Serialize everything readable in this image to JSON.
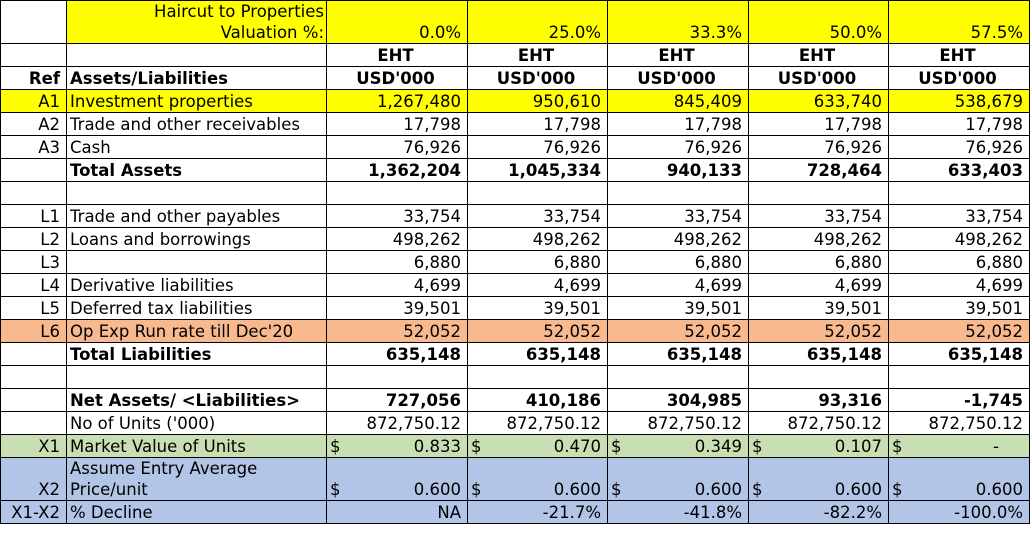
{
  "header": {
    "haircut_label": [
      "Haircut to Properties",
      "Valuation %:"
    ],
    "haircuts": [
      "0.0%",
      "25.0%",
      "33.3%",
      "50.0%",
      "57.5%"
    ],
    "entity": "EHT",
    "unit": "USD'000",
    "ref_label": "Ref",
    "desc_label": "Assets/Liabilities"
  },
  "rows": {
    "a1": {
      "ref": "A1",
      "desc": "Investment properties",
      "values": [
        "1,267,480",
        "950,610",
        "845,409",
        "633,740",
        "538,679"
      ]
    },
    "a2": {
      "ref": "A2",
      "desc": "Trade and other receivables",
      "values": [
        "17,798",
        "17,798",
        "17,798",
        "17,798",
        "17,798"
      ]
    },
    "a3": {
      "ref": "A3",
      "desc": "Cash",
      "values": [
        "76,926",
        "76,926",
        "76,926",
        "76,926",
        "76,926"
      ]
    },
    "total_assets": {
      "desc": "Total Assets",
      "values": [
        "1,362,204",
        "1,045,334",
        "940,133",
        "728,464",
        "633,403"
      ]
    },
    "l1": {
      "ref": "L1",
      "desc": "Trade and other payables",
      "values": [
        "33,754",
        "33,754",
        "33,754",
        "33,754",
        "33,754"
      ]
    },
    "l2": {
      "ref": "L2",
      "desc": "Loans and borrowings",
      "values": [
        "498,262",
        "498,262",
        "498,262",
        "498,262",
        "498,262"
      ]
    },
    "l3": {
      "ref": "L3",
      "desc": "",
      "values": [
        "6,880",
        "6,880",
        "6,880",
        "6,880",
        "6,880"
      ]
    },
    "l4": {
      "ref": "L4",
      "desc": "Derivative liabilities",
      "values": [
        "4,699",
        "4,699",
        "4,699",
        "4,699",
        "4,699"
      ]
    },
    "l5": {
      "ref": "L5",
      "desc": "Deferred tax liabilities",
      "values": [
        "39,501",
        "39,501",
        "39,501",
        "39,501",
        "39,501"
      ]
    },
    "l6": {
      "ref": "L6",
      "desc": "Op Exp Run rate till Dec'20",
      "values": [
        "52,052",
        "52,052",
        "52,052",
        "52,052",
        "52,052"
      ]
    },
    "total_liabilities": {
      "desc": "Total Liabilities",
      "values": [
        "635,148",
        "635,148",
        "635,148",
        "635,148",
        "635,148"
      ]
    },
    "net_assets": {
      "desc": "Net Assets/ <Liabilities>",
      "values": [
        "727,056",
        "410,186",
        "304,985",
        "93,316",
        "-1,745"
      ]
    },
    "units": {
      "desc": "No of Units ('000)",
      "values": [
        "872,750.12",
        "872,750.12",
        "872,750.12",
        "872,750.12",
        "872,750.12"
      ]
    },
    "x1": {
      "ref": "X1",
      "desc": "Market Value of Units",
      "currency": "$",
      "values": [
        "0.833",
        "0.470",
        "0.349",
        "0.107",
        "-"
      ]
    },
    "x2": {
      "ref": "X2",
      "desc_lines": [
        "Assume Entry Average",
        "Price/unit"
      ],
      "currency": "$",
      "values": [
        "0.600",
        "0.600",
        "0.600",
        "0.600",
        "0.600"
      ]
    },
    "decline": {
      "ref": "X1-X2",
      "desc": "% Decline",
      "values": [
        "NA",
        "-21.7%",
        "-41.8%",
        "-82.2%",
        "-100.0%"
      ]
    }
  },
  "colors": {
    "highlight_yellow": "#ffff00",
    "highlight_salmon": "#f8b98e",
    "highlight_green": "#c7dfb3",
    "highlight_blue": "#b3c5e6",
    "ref_red": "#e00000",
    "negative_red": "#ff0000"
  }
}
